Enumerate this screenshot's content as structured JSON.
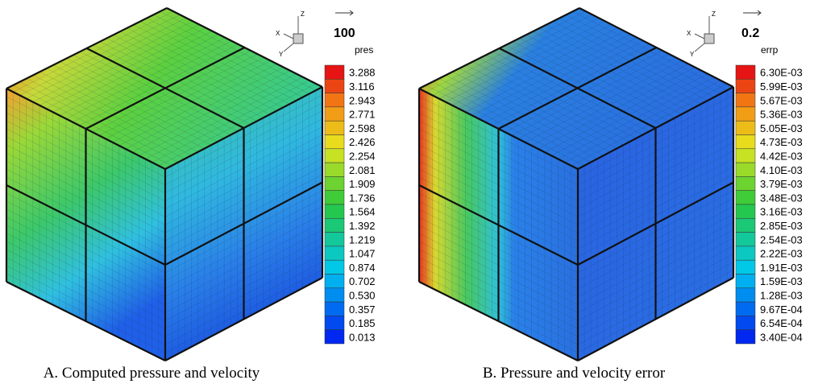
{
  "panels": [
    {
      "caption": "A. Computed pressure and velocity",
      "vector_reference": "100",
      "variable": "pres",
      "axis_labels": {
        "x": "X",
        "y": "Y",
        "z": "Z"
      },
      "levels": [
        "3.288",
        "3.116",
        "2.943",
        "2.771",
        "2.598",
        "2.426",
        "2.254",
        "2.081",
        "1.909",
        "1.736",
        "1.564",
        "1.392",
        "1.219",
        "1.047",
        "0.874",
        "0.702",
        "0.530",
        "0.357",
        "0.185",
        "0.013"
      ]
    },
    {
      "caption": "B. Pressure and velocity error",
      "vector_reference": "0.2",
      "variable": "errp",
      "axis_labels": {
        "x": "X",
        "y": "Y",
        "z": "Z"
      },
      "levels": [
        "6.30E-03",
        "5.99E-03",
        "5.67E-03",
        "5.36E-03",
        "5.05E-03",
        "4.73E-03",
        "4.42E-03",
        "4.10E-03",
        "3.79E-03",
        "3.48E-03",
        "3.16E-03",
        "2.85E-03",
        "2.54E-03",
        "2.22E-03",
        "1.91E-03",
        "1.59E-03",
        "1.28E-03",
        "9.67E-04",
        "6.54E-04",
        "3.40E-04"
      ]
    }
  ]
}
